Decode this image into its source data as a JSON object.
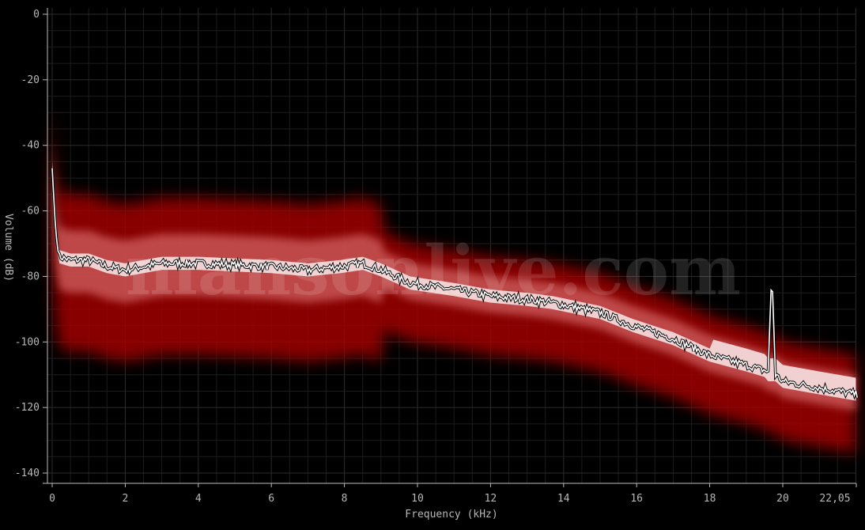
{
  "chart_data": {
    "type": "line",
    "title": "",
    "xlabel": "Frequency (kHz)",
    "ylabel": "Volume (dB)",
    "xlim": [
      0,
      22.05
    ],
    "ylim": [
      -140,
      0
    ],
    "x_ticks": [
      "0",
      "2",
      "4",
      "6",
      "8",
      "10",
      "12",
      "14",
      "16",
      "18",
      "20",
      "22,05"
    ],
    "y_ticks": [
      "0",
      "-20",
      "-40",
      "-60",
      "-80",
      "-100",
      "-120",
      "-140"
    ],
    "grid": true,
    "background": "#000000",
    "band_color": "#a00000",
    "line_color": "#ffffff",
    "watermark": "mansonlive.com",
    "series": [
      {
        "x": [
          0,
          0.1,
          0.2,
          0.5,
          1,
          1.5,
          2,
          3,
          4,
          5,
          6,
          7,
          7.9,
          8.5,
          9,
          9.8,
          11,
          12,
          13,
          13.7,
          15,
          15.9,
          17,
          18,
          19,
          19.6,
          19.7,
          19.8,
          20,
          21,
          22.05
        ],
        "y": [
          -47,
          -67,
          -74,
          -75,
          -75,
          -77,
          -78,
          -76,
          -76,
          -76.5,
          -77,
          -78,
          -77,
          -76,
          -78,
          -82,
          -84,
          -86,
          -87,
          -88,
          -91,
          -95,
          -99,
          -104,
          -107,
          -109,
          -78,
          -110,
          -112,
          -114,
          -116
        ]
      }
    ]
  }
}
